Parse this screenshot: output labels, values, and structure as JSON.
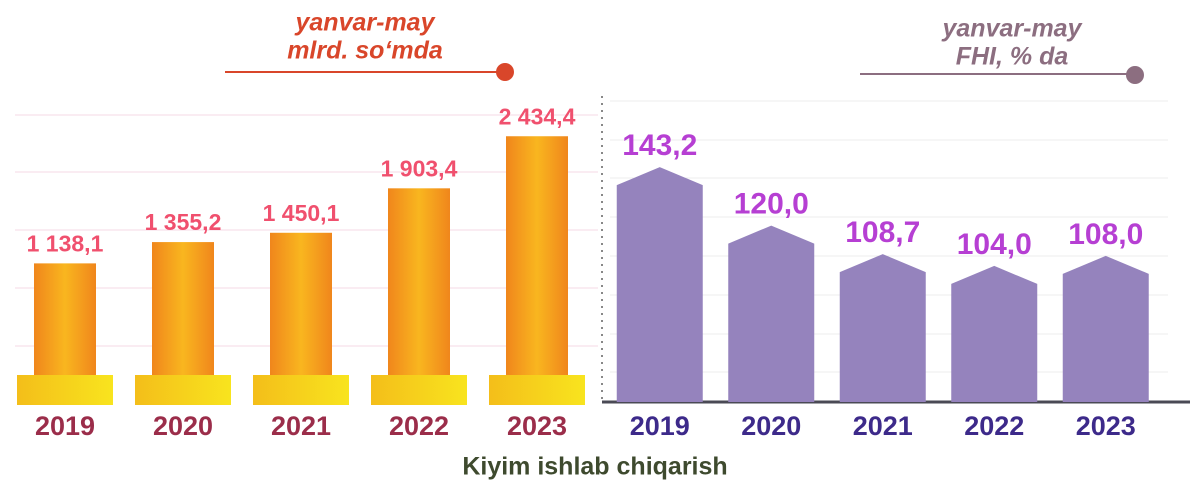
{
  "title": "Kiyim ishlab chiqarish",
  "chart_data": [
    {
      "type": "bar",
      "subtitle": [
        "yanvar-may",
        "mlrd. so‘mda"
      ],
      "categories": [
        "2019",
        "2020",
        "2021",
        "2022",
        "2023"
      ],
      "values": [
        1138.1,
        1355.2,
        1450.1,
        1903.4,
        2434.4
      ],
      "value_labels": [
        "1 138,1",
        "1 355,2",
        "1 450,1",
        "1 903,4",
        "2 434,4"
      ],
      "color": "#f5901e",
      "ylim": [
        0,
        2600
      ]
    },
    {
      "type": "bar",
      "subtitle": [
        "yanvar-may",
        "FHI, % da"
      ],
      "categories": [
        "2019",
        "2020",
        "2021",
        "2022",
        "2023"
      ],
      "values": [
        143.2,
        120.0,
        108.7,
        104.0,
        108.0
      ],
      "value_labels": [
        "143,2",
        "120,0",
        "108,7",
        "104,0",
        "108,0"
      ],
      "color": "#9583bd",
      "ylim": [
        50,
        150
      ]
    }
  ]
}
